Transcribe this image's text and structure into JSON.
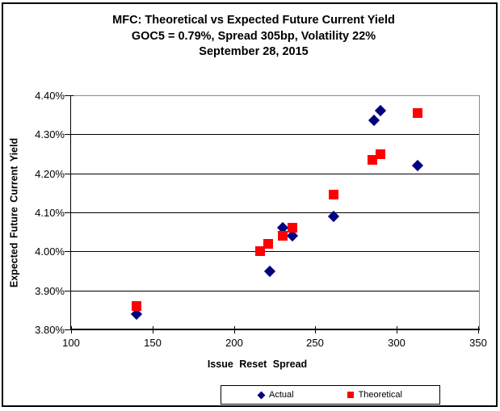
{
  "window": {
    "background": "#FFFFFF",
    "border_color": "#000000"
  },
  "chart_data": {
    "type": "scatter",
    "title": "MFC: Theoretical vs Expected Future Current Yield",
    "subtitle": "GOC5 = 0.79%, Spread 305bp, Volatility 22%",
    "date_line": "September 28, 2015",
    "xlabel": "Issue Reset Spread",
    "ylabel": "Expected Future Current Yield",
    "xlim": [
      100,
      350
    ],
    "ylim": [
      3.8,
      4.4
    ],
    "grid": "horizontal",
    "legend_position": "bottom",
    "x_ticks": [
      {
        "value": 100,
        "label": "100"
      },
      {
        "value": 150,
        "label": "150"
      },
      {
        "value": 200,
        "label": "200"
      },
      {
        "value": 250,
        "label": "250"
      },
      {
        "value": 300,
        "label": "300"
      },
      {
        "value": 350,
        "label": "350"
      }
    ],
    "y_ticks": [
      {
        "value": 4.4,
        "label": "4.40%"
      },
      {
        "value": 4.3,
        "label": "4.30%"
      },
      {
        "value": 4.2,
        "label": "4.20%"
      },
      {
        "value": 4.1,
        "label": "4.10%"
      },
      {
        "value": 4.0,
        "label": "4.00%"
      },
      {
        "value": 3.9,
        "label": "3.90%"
      },
      {
        "value": 3.8,
        "label": "3.80%"
      }
    ],
    "series": [
      {
        "name": "Actual",
        "marker": "diamond",
        "color": "#000080",
        "points": [
          [
            140,
            3.84
          ],
          [
            222,
            3.95
          ],
          [
            230,
            4.06
          ],
          [
            236,
            4.04
          ],
          [
            261,
            4.09
          ],
          [
            286,
            4.335
          ],
          [
            290,
            4.36
          ],
          [
            313,
            4.22
          ]
        ]
      },
      {
        "name": "Theoretical",
        "marker": "square",
        "color": "#FF0000",
        "points": [
          [
            140,
            3.86
          ],
          [
            216,
            4.0
          ],
          [
            221,
            4.02
          ],
          [
            230,
            4.04
          ],
          [
            236,
            4.06
          ],
          [
            261,
            4.145
          ],
          [
            285,
            4.235
          ],
          [
            290,
            4.25
          ],
          [
            313,
            4.355
          ]
        ]
      }
    ]
  }
}
